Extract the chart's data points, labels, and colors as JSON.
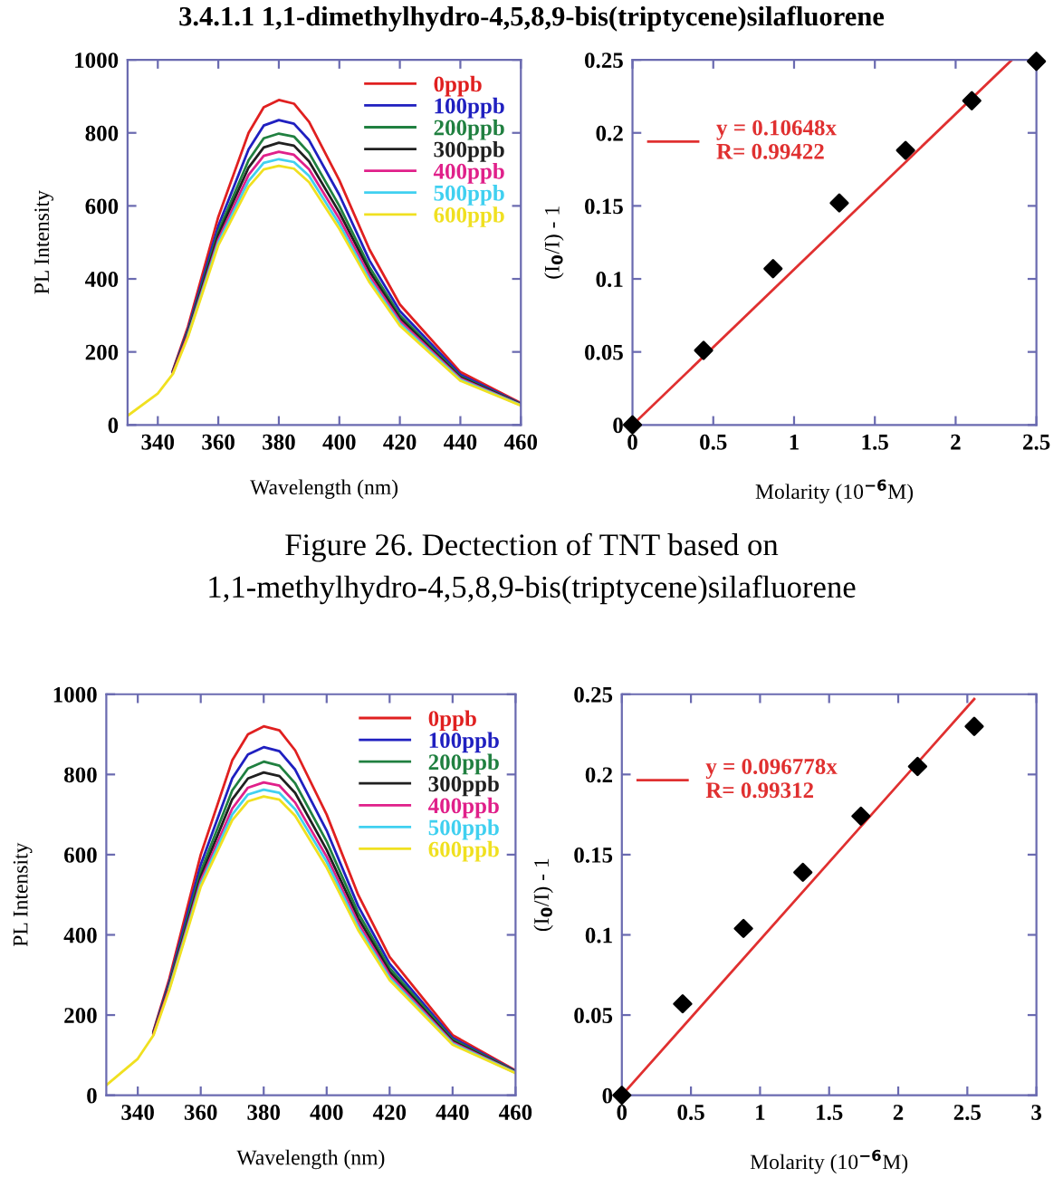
{
  "chart_data": [
    {
      "type": "line",
      "xlabel": "Wavelength (nm)",
      "ylabel": "PL Intensity",
      "annotations": [
        "3.4.1.1 1,1-dimethylhydro-4,5,8,9-bis(triptycene)silafluorene"
      ],
      "x": [
        330,
        340,
        345,
        350,
        360,
        370,
        375,
        380,
        385,
        390,
        400,
        410,
        420,
        440,
        460
      ],
      "xlim": [
        330,
        460
      ],
      "xticks": [
        340,
        360,
        380,
        400,
        420,
        440,
        460
      ],
      "ylim": [
        0,
        1000
      ],
      "yticks": [
        0,
        200,
        400,
        600,
        800,
        1000
      ],
      "legend": "top right",
      "grid": false,
      "series": [
        {
          "name": "0ppb",
          "color": "#e02020",
          "values": [
            null,
            null,
            150,
            270,
            570,
            800,
            870,
            890,
            880,
            830,
            670,
            480,
            330,
            145,
            60
          ]
        },
        {
          "name": "100ppb",
          "color": "#2020c0",
          "values": [
            null,
            null,
            148,
            262,
            545,
            755,
            820,
            835,
            825,
            780,
            630,
            450,
            312,
            138,
            58
          ]
        },
        {
          "name": "200ppb",
          "color": "#208040",
          "values": [
            null,
            null,
            146,
            256,
            530,
            725,
            785,
            798,
            790,
            745,
            600,
            432,
            300,
            133,
            57
          ]
        },
        {
          "name": "300ppb",
          "color": "#202020",
          "values": [
            null,
            null,
            145,
            252,
            520,
            705,
            760,
            773,
            765,
            722,
            582,
            420,
            292,
            130,
            56
          ]
        },
        {
          "name": "400ppb",
          "color": "#e0208a",
          "values": [
            null,
            null,
            143,
            248,
            508,
            685,
            737,
            748,
            740,
            700,
            565,
            408,
            285,
            127,
            55
          ]
        },
        {
          "name": "500ppb",
          "color": "#40d0f0",
          "values": [
            null,
            null,
            null,
            245,
            500,
            668,
            718,
            728,
            720,
            682,
            550,
            398,
            278,
            124,
            54
          ]
        },
        {
          "name": "600ppb",
          "color": "#f0e020",
          "values": [
            25,
            86,
            140,
            242,
            492,
            652,
            700,
            710,
            702,
            665,
            537,
            390,
            272,
            121,
            53
          ]
        }
      ]
    },
    {
      "type": "scatter",
      "xlabel": "Molarity (10$^{−6}$M)",
      "ylabel": "(I$_{0}$/I) - 1",
      "annotations": [
        "Figure 26. Dectection of TNT based on\n1,1-methylhydro-4,5,8,9-bis(triptycene)silafluorene"
      ],
      "xlim": [
        0,
        2.5
      ],
      "xticks": [
        0,
        0.5,
        1,
        1.5,
        2,
        2.5
      ],
      "ylim": [
        0,
        0.25
      ],
      "yticks": [
        0,
        0.05,
        0.1,
        0.15,
        0.2,
        0.25
      ],
      "legend": "top left",
      "grid": false,
      "series": [
        {
          "type": "scatter",
          "marker": "diamond",
          "color": "#000000",
          "x": [
            0,
            0.44,
            0.87,
            1.28,
            1.69,
            2.1,
            2.5
          ],
          "values": [
            0,
            0.051,
            0.107,
            0.152,
            0.188,
            0.222,
            0.249
          ]
        },
        {
          "type": "line",
          "marker": "none",
          "name": "y = 0.10648x\nR= 0.99422",
          "color": "#e03030",
          "x": [
            0,
            2.348
          ],
          "values": [
            0,
            0.25
          ]
        }
      ]
    },
    {
      "type": "line",
      "xlabel": "Wavelength (nm)",
      "ylabel": "PL Intensity",
      "x": [
        330,
        340,
        345,
        350,
        360,
        370,
        375,
        380,
        385,
        390,
        400,
        410,
        420,
        440,
        460
      ],
      "xlim": [
        330,
        460
      ],
      "xticks": [
        340,
        360,
        380,
        400,
        420,
        440,
        460
      ],
      "ylim": [
        0,
        1000
      ],
      "yticks": [
        0,
        200,
        400,
        600,
        800,
        1000
      ],
      "legend": "top right",
      "grid": false,
      "series": [
        {
          "name": "0ppb",
          "color": "#e02020",
          "values": [
            null,
            null,
            160,
            290,
            600,
            835,
            900,
            920,
            910,
            860,
            700,
            500,
            345,
            150,
            62
          ]
        },
        {
          "name": "100ppb",
          "color": "#2020c0",
          "values": [
            null,
            null,
            158,
            282,
            575,
            790,
            850,
            868,
            858,
            812,
            660,
            472,
            328,
            143,
            60
          ]
        },
        {
          "name": "200ppb",
          "color": "#208040",
          "values": [
            null,
            null,
            156,
            276,
            558,
            760,
            815,
            832,
            822,
            778,
            633,
            455,
            317,
            139,
            59
          ]
        },
        {
          "name": "300ppb",
          "color": "#202020",
          "values": [
            null,
            null,
            155,
            272,
            545,
            738,
            790,
            805,
            796,
            754,
            612,
            442,
            308,
            135,
            58
          ]
        },
        {
          "name": "400ppb",
          "color": "#e0208a",
          "values": [
            null,
            null,
            153,
            268,
            535,
            715,
            767,
            780,
            772,
            730,
            595,
            430,
            300,
            132,
            57
          ]
        },
        {
          "name": "500ppb",
          "color": "#40d0f0",
          "values": [
            null,
            null,
            null,
            265,
            527,
            700,
            750,
            762,
            754,
            713,
            582,
            420,
            293,
            129,
            56
          ]
        },
        {
          "name": "600ppb",
          "color": "#f0e020",
          "values": [
            25,
            91,
            150,
            262,
            520,
            686,
            733,
            745,
            737,
            697,
            568,
            412,
            287,
            126,
            55
          ]
        }
      ]
    },
    {
      "type": "scatter",
      "xlabel": "Molarity (10$^{−6}$M)",
      "ylabel": "(I$_{0}$/I) - 1",
      "xlim": [
        0,
        3
      ],
      "xticks": [
        0,
        0.5,
        1,
        1.5,
        2,
        2.5,
        3
      ],
      "ylim": [
        0,
        0.25
      ],
      "yticks": [
        0,
        0.05,
        0.1,
        0.15,
        0.2,
        0.25
      ],
      "legend": "top left",
      "grid": false,
      "series": [
        {
          "type": "scatter",
          "marker": "diamond",
          "color": "#000000",
          "x": [
            0,
            0.44,
            0.88,
            1.31,
            1.73,
            2.14,
            2.55
          ],
          "values": [
            0,
            0.057,
            0.104,
            0.139,
            0.174,
            0.205,
            0.23
          ]
        },
        {
          "type": "line",
          "marker": "none",
          "name": "y = 0.096778x\nR= 0.99312",
          "color": "#e03030",
          "x": [
            0,
            2.55
          ],
          "values": [
            0,
            0.247
          ]
        }
      ]
    }
  ]
}
